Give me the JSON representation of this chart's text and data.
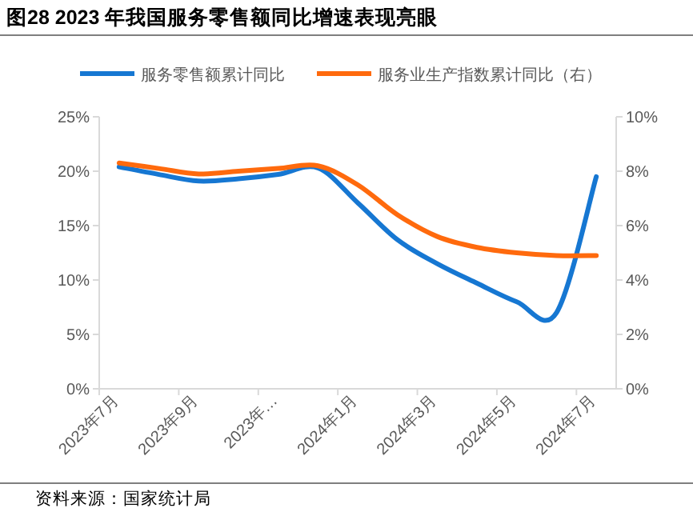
{
  "chart_data": {
    "type": "line",
    "title": "图28 2023 年我国服务零售额同比增速表现亮眼",
    "categories": [
      "2023年7月",
      null,
      "2023年9月",
      null,
      "2023年…",
      null,
      "2024年1月",
      null,
      "2024年3月",
      null,
      "2024年5月",
      null,
      "2024年7月"
    ],
    "series": [
      {
        "name": "服务零售额累计同比",
        "color": "#1677d2",
        "values": [
          20.4,
          19.7,
          19.1,
          19.3,
          19.7,
          20.3,
          17.1,
          13.7,
          11.5,
          9.7,
          8.0,
          7.0,
          19.5
        ]
      },
      {
        "name": "服务业生产指数累计同比（右）",
        "color": "#ff6a0d",
        "axis": "y2",
        "values": [
          8.3,
          8.1,
          7.9,
          8.0,
          8.1,
          8.2,
          7.5,
          6.4,
          5.6,
          5.2,
          5.0,
          4.9,
          4.9
        ]
      }
    ],
    "ylim": [
      0,
      25
    ],
    "yticks": [
      {
        "value": 0,
        "label": "0%"
      },
      {
        "value": 5,
        "label": "5%"
      },
      {
        "value": 10,
        "label": "10%"
      },
      {
        "value": 15,
        "label": "15%"
      },
      {
        "value": 20,
        "label": "20%"
      },
      {
        "value": 25,
        "label": "25%"
      }
    ],
    "y2lim": [
      0,
      10
    ],
    "y2ticks": [
      {
        "value": 0,
        "label": "0%"
      },
      {
        "value": 2,
        "label": "2%"
      },
      {
        "value": 4,
        "label": "4%"
      },
      {
        "value": 6,
        "label": "6%"
      },
      {
        "value": 8,
        "label": "8%"
      },
      {
        "value": 10,
        "label": "10%"
      }
    ],
    "legend": "top",
    "grid": false,
    "marker": "none",
    "line_style": "solid",
    "annotations": [
      "资料来源：国家统计局"
    ]
  }
}
